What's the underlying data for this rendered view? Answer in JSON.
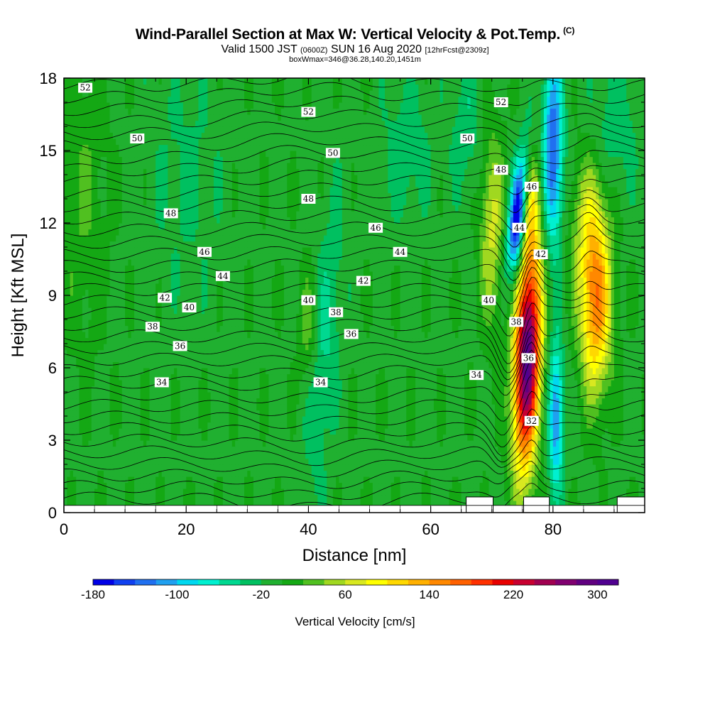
{
  "title": {
    "main": "Wind-Parallel Section at Max W: Vertical Velocity & Pot.Temp.",
    "corner": "(C)",
    "valid_prefix": "Valid 1500 JST",
    "valid_utc": "(0600Z)",
    "valid_date": "SUN 16 Aug 2020",
    "forecast": "[12hrFcst@2309z]",
    "box": "boxWmax=346@36.28,140.20,1451m"
  },
  "chart_data": {
    "type": "heatmap",
    "xlabel": "Distance [nm]",
    "ylabel": "Height [Kft MSL]",
    "xlim": [
      0,
      95
    ],
    "ylim": [
      0,
      18
    ],
    "x_ticks": [
      0,
      20,
      40,
      60,
      80
    ],
    "x_tick_labels": [
      "0",
      "20",
      "40",
      "60",
      "80"
    ],
    "y_ticks": [
      0,
      3,
      6,
      9,
      12,
      15,
      18
    ],
    "y_tick_labels": [
      "0",
      "3",
      "6",
      "9",
      "12",
      "15",
      "18"
    ],
    "colorbar": {
      "title": "Vertical Velocity [cm/s]",
      "min": -180,
      "max": 320,
      "step": 20,
      "tick_values": [
        -180,
        -100,
        -20,
        60,
        140,
        220,
        300
      ],
      "tick_labels": [
        "-180",
        "-100",
        "-20",
        "60",
        "140",
        "220",
        "300"
      ],
      "colors": [
        "#0000e6",
        "#1040f0",
        "#2070f0",
        "#20a0f0",
        "#00d8f0",
        "#00f0d0",
        "#00d890",
        "#00c060",
        "#20b030",
        "#14a814",
        "#50c020",
        "#a0d820",
        "#d8e820",
        "#ffff00",
        "#ffd800",
        "#ffb000",
        "#ff8800",
        "#ff6000",
        "#ff3000",
        "#e80000",
        "#c80030",
        "#a00050",
        "#800070",
        "#600080",
        "#500090"
      ]
    },
    "contour_labels": [
      {
        "text": "52",
        "x": 3.5,
        "y": 17.6
      },
      {
        "text": "52",
        "x": 40.0,
        "y": 16.6
      },
      {
        "text": "52",
        "x": 71.5,
        "y": 17.0
      },
      {
        "text": "50",
        "x": 12.0,
        "y": 15.5
      },
      {
        "text": "50",
        "x": 44.0,
        "y": 14.9
      },
      {
        "text": "50",
        "x": 66.0,
        "y": 15.5
      },
      {
        "text": "48",
        "x": 17.5,
        "y": 12.4
      },
      {
        "text": "48",
        "x": 40.0,
        "y": 13.0
      },
      {
        "text": "48",
        "x": 71.5,
        "y": 14.2
      },
      {
        "text": "46",
        "x": 23.0,
        "y": 10.8
      },
      {
        "text": "46",
        "x": 51.0,
        "y": 11.8
      },
      {
        "text": "46",
        "x": 76.5,
        "y": 13.5
      },
      {
        "text": "44",
        "x": 26.0,
        "y": 9.8
      },
      {
        "text": "44",
        "x": 55.0,
        "y": 10.8
      },
      {
        "text": "44",
        "x": 74.5,
        "y": 11.8
      },
      {
        "text": "42",
        "x": 16.5,
        "y": 8.9
      },
      {
        "text": "42",
        "x": 49.0,
        "y": 9.6
      },
      {
        "text": "42",
        "x": 78.0,
        "y": 10.7
      },
      {
        "text": "40",
        "x": 20.5,
        "y": 8.5
      },
      {
        "text": "40",
        "x": 40.0,
        "y": 8.8
      },
      {
        "text": "40",
        "x": 69.5,
        "y": 8.8
      },
      {
        "text": "38",
        "x": 14.5,
        "y": 7.7
      },
      {
        "text": "38",
        "x": 44.5,
        "y": 8.3
      },
      {
        "text": "38",
        "x": 74.0,
        "y": 7.9
      },
      {
        "text": "36",
        "x": 19.0,
        "y": 6.9
      },
      {
        "text": "36",
        "x": 47.0,
        "y": 7.4
      },
      {
        "text": "36",
        "x": 76.0,
        "y": 6.4
      },
      {
        "text": "34",
        "x": 16.0,
        "y": 5.4
      },
      {
        "text": "34",
        "x": 42.0,
        "y": 5.4
      },
      {
        "text": "34",
        "x": 67.5,
        "y": 5.7
      },
      {
        "text": "32",
        "x": 76.5,
        "y": 3.8
      }
    ],
    "grid": false,
    "legend": "bottom"
  }
}
